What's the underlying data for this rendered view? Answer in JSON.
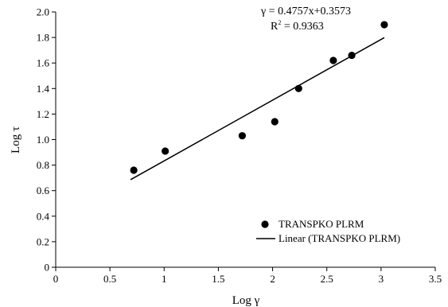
{
  "chart_data": {
    "type": "scatter",
    "xlabel": "Log γ",
    "ylabel": "Log τ",
    "xlim": [
      0,
      3.5
    ],
    "ylim": [
      0,
      2.0
    ],
    "x_ticks": [
      0,
      0.5,
      1,
      1.5,
      2,
      2.5,
      3,
      3.5
    ],
    "x_tick_labels": [
      "0",
      "0.5",
      "1",
      "1.5",
      "2",
      "2.5",
      "3",
      "3.5"
    ],
    "y_ticks": [
      0,
      0.2,
      0.4,
      0.6,
      0.8,
      1.0,
      1.2,
      1.4,
      1.6,
      1.8,
      2.0
    ],
    "y_tick_labels": [
      "0",
      "0.2",
      "0.4",
      "0.6",
      "0.8",
      "1.0",
      "1.2",
      "1.4",
      "1.6",
      "1.8",
      "2.0"
    ],
    "grid": false,
    "series": [
      {
        "name": "TRANSPKO PLRM",
        "type": "scatter",
        "color": "#000000",
        "x": [
          0.72,
          1.01,
          1.72,
          2.02,
          2.24,
          2.56,
          2.73,
          3.03
        ],
        "y": [
          0.76,
          0.91,
          1.03,
          1.14,
          1.4,
          1.62,
          1.66,
          1.9
        ]
      },
      {
        "name": "Linear  (TRANSPKO PLRM)",
        "type": "line",
        "color": "#000000",
        "x": [
          0.69,
          3.03
        ],
        "y": [
          0.6856,
          1.7987
        ]
      }
    ],
    "trendline": {
      "slope": 0.4757,
      "intercept": 0.3573,
      "equation": "γ = 0.4757x+0.3573",
      "r_squared_label": "R",
      "r_squared_sup": "2",
      "r_squared_value": " = 0.9363"
    },
    "legend": {
      "position": "bottom-right",
      "entries": [
        "TRANSPKO PLRM",
        "Linear  (TRANSPKO PLRM)"
      ]
    }
  }
}
